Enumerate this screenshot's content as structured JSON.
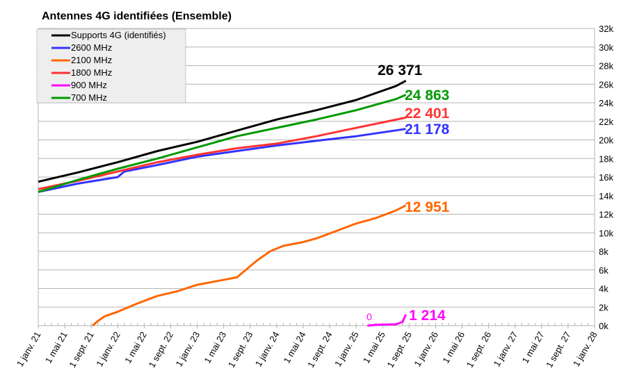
{
  "chart_data": {
    "type": "line",
    "title": "Antennes 4G identifiées (Ensemble)",
    "xlabel": "",
    "ylabel": "",
    "x_unit": "months since 1 janv. 21",
    "xlim": [
      0,
      84
    ],
    "ylim": [
      0,
      32000
    ],
    "y_ticks": [
      "0k",
      "2k",
      "4k",
      "6k",
      "8k",
      "10k",
      "12k",
      "14k",
      "16k",
      "18k",
      "20k",
      "22k",
      "24k",
      "26k",
      "28k",
      "30k",
      "32k"
    ],
    "x_ticks": [
      "1 janv. 21",
      "1 mai 21",
      "1 sept. 21",
      "1 janv. 22",
      "1 mai 22",
      "1 sept. 22",
      "1 janv. 23",
      "1 mai 23",
      "1 sept. 23",
      "1 janv. 24",
      "1 mai 24",
      "1 sept. 24",
      "1 janv. 25",
      "1 mai 25",
      "1 sept. 25",
      "1 janv. 26",
      "1 mai 26",
      "1 sept. 26",
      "1 janv. 27",
      "1 mai 27",
      "1 sept. 27",
      "1 janv. 28"
    ],
    "grid": true,
    "legend_position": "top-left",
    "series": [
      {
        "name": "Supports 4G (identifiés)",
        "color": "#000000",
        "end_label": "26 371",
        "points": [
          [
            0,
            15500
          ],
          [
            6,
            16500
          ],
          [
            12,
            17600
          ],
          [
            18,
            18800
          ],
          [
            24,
            19800
          ],
          [
            30,
            21000
          ],
          [
            36,
            22200
          ],
          [
            42,
            23200
          ],
          [
            48,
            24300
          ],
          [
            54,
            25800
          ],
          [
            55.5,
            26371
          ]
        ]
      },
      {
        "name": "2600 MHz",
        "color": "#3333ff",
        "end_label": "21 178",
        "points": [
          [
            0,
            14400
          ],
          [
            6,
            15300
          ],
          [
            12,
            16000
          ],
          [
            13,
            16600
          ],
          [
            18,
            17300
          ],
          [
            24,
            18200
          ],
          [
            30,
            18800
          ],
          [
            36,
            19400
          ],
          [
            42,
            19900
          ],
          [
            48,
            20400
          ],
          [
            55.5,
            21178
          ]
        ]
      },
      {
        "name": "2100 MHz",
        "color": "#ff6600",
        "end_label": "12 951",
        "points": [
          [
            8.2,
            0
          ],
          [
            9,
            500
          ],
          [
            10,
            1000
          ],
          [
            12,
            1500
          ],
          [
            15,
            2400
          ],
          [
            18,
            3200
          ],
          [
            21,
            3700
          ],
          [
            24,
            4400
          ],
          [
            27,
            4800
          ],
          [
            30,
            5200
          ],
          [
            31,
            5800
          ],
          [
            33,
            7000
          ],
          [
            35,
            8000
          ],
          [
            37,
            8600
          ],
          [
            40,
            9000
          ],
          [
            42,
            9400
          ],
          [
            45,
            10200
          ],
          [
            48,
            11000
          ],
          [
            51,
            11600
          ],
          [
            54,
            12400
          ],
          [
            55.5,
            12951
          ]
        ]
      },
      {
        "name": "1800 MHz",
        "color": "#ff3333",
        "end_label": "22 401",
        "points": [
          [
            0,
            14700
          ],
          [
            6,
            15600
          ],
          [
            12,
            16600
          ],
          [
            18,
            17600
          ],
          [
            24,
            18400
          ],
          [
            30,
            19100
          ],
          [
            36,
            19600
          ],
          [
            42,
            20400
          ],
          [
            48,
            21300
          ],
          [
            55.5,
            22401
          ]
        ]
      },
      {
        "name": "900 MHz",
        "color": "#ff00ff",
        "end_label": "1 214",
        "start_label": "0",
        "points": [
          [
            49.7,
            0
          ],
          [
            51,
            100
          ],
          [
            54,
            150
          ],
          [
            55,
            400
          ],
          [
            55.5,
            1214
          ]
        ]
      },
      {
        "name": "700 MHz",
        "color": "#009900",
        "end_label": "24 863",
        "points": [
          [
            0,
            14400
          ],
          [
            6,
            15700
          ],
          [
            12,
            16900
          ],
          [
            18,
            18000
          ],
          [
            24,
            19200
          ],
          [
            30,
            20400
          ],
          [
            36,
            21300
          ],
          [
            42,
            22200
          ],
          [
            48,
            23200
          ],
          [
            54,
            24400
          ],
          [
            55.5,
            24863
          ]
        ]
      }
    ]
  }
}
